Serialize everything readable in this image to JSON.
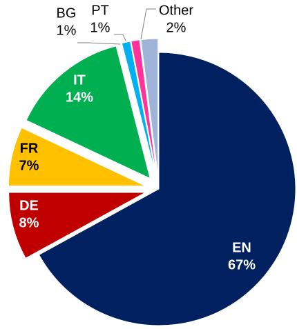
{
  "chart_data": {
    "type": "pie",
    "categories": [
      "EN",
      "DE",
      "FR",
      "IT",
      "BG",
      "PT",
      "Other"
    ],
    "values": [
      67,
      8,
      7,
      14,
      1,
      1,
      2
    ],
    "value_labels": [
      "67%",
      "8%",
      "7%",
      "14%",
      "1%",
      "1%",
      "2%"
    ],
    "colors": [
      "#002060",
      "#c00000",
      "#ffc000",
      "#00b050",
      "#00b0f0",
      "#ff3399",
      "#9fb3d9"
    ]
  }
}
